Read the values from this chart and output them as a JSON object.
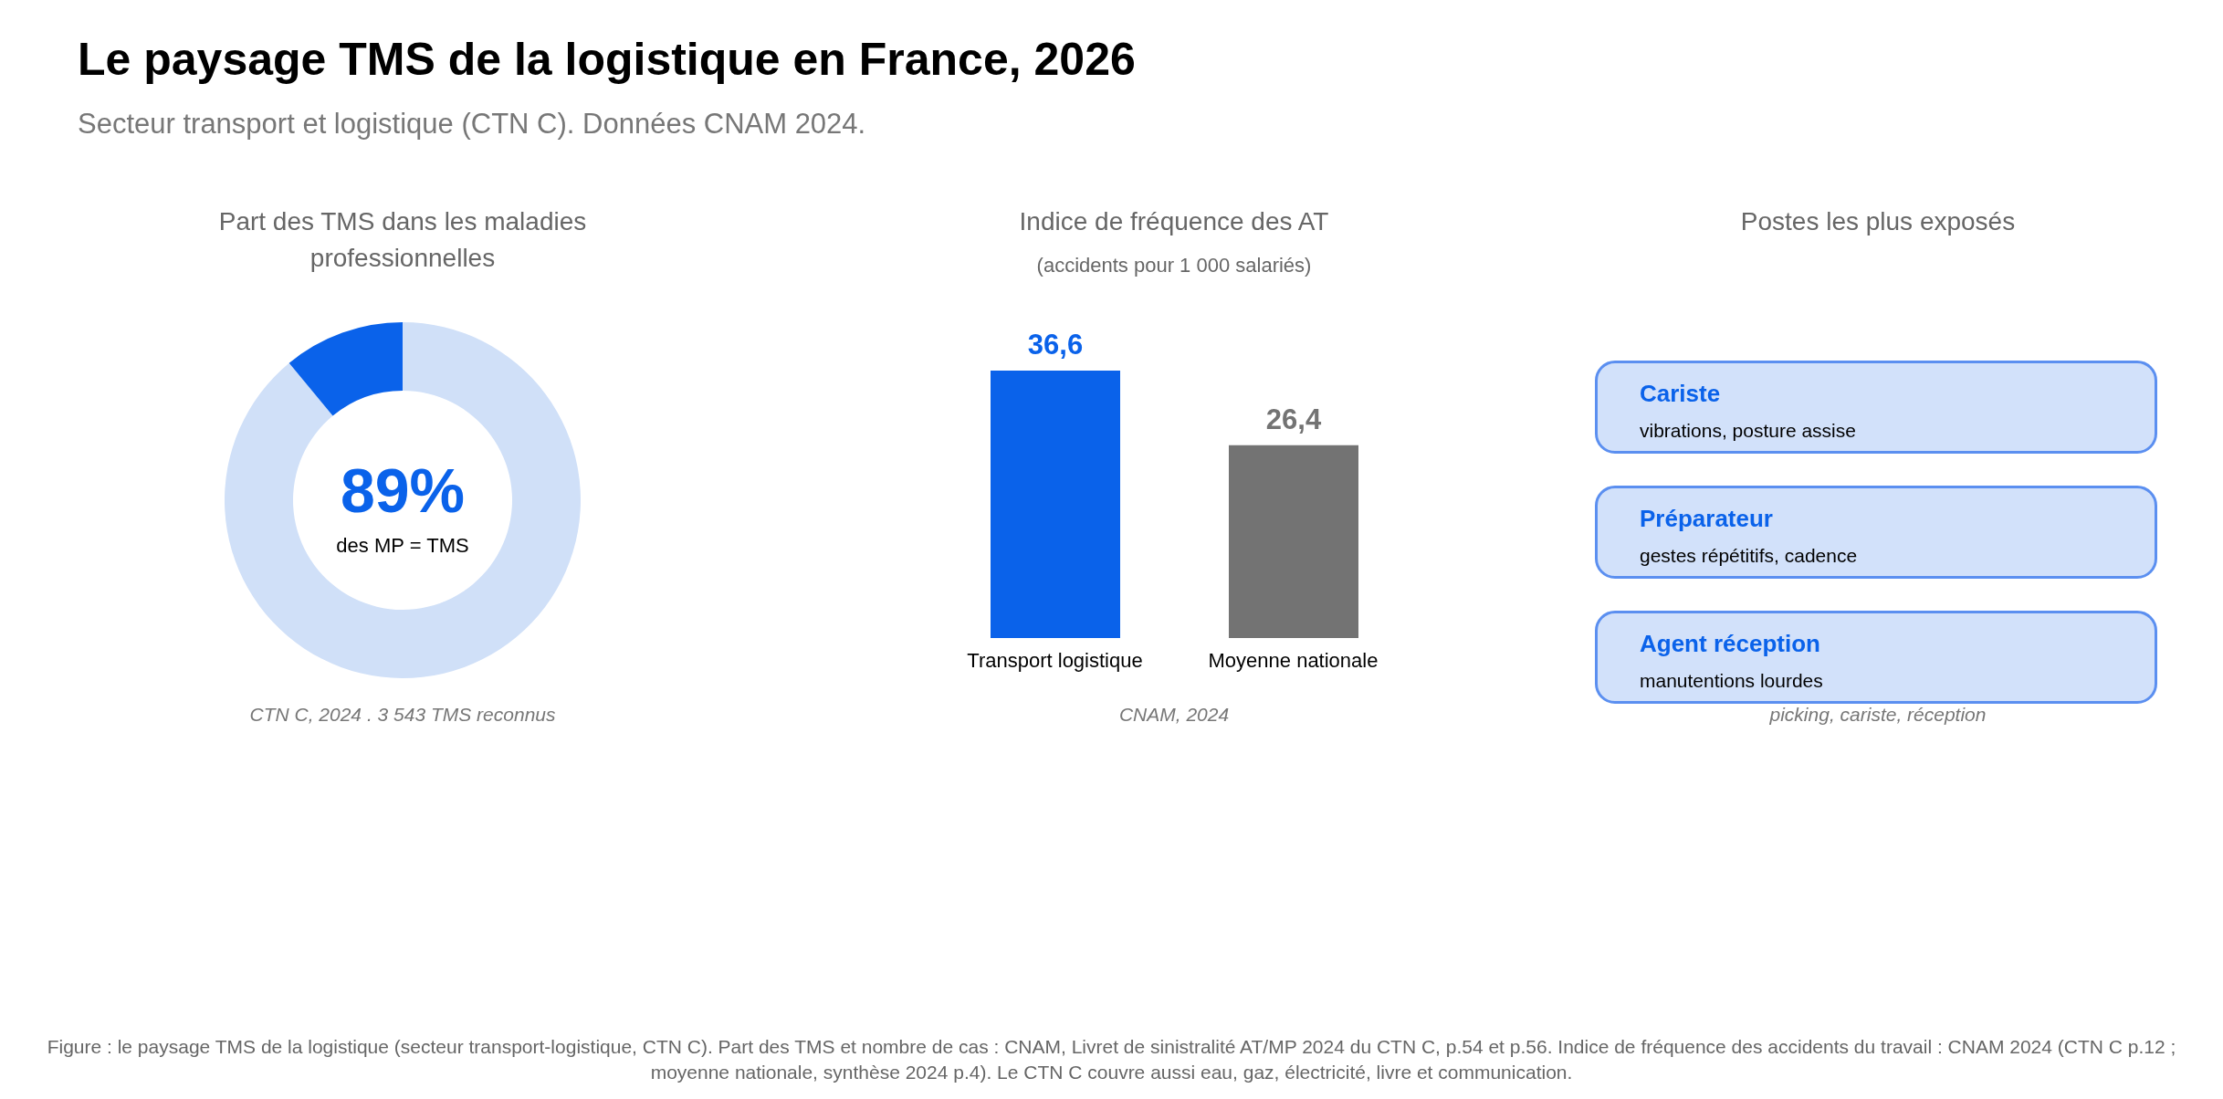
{
  "chart_data": [
    {
      "type": "other",
      "title": "Le paysage TMS de la logistique en France, 2026",
      "subtitle": "Secteur transport et logistique (CTN C). Données CNAM 2024.",
      "annotations": [
        "Figure : le paysage TMS de la logistique (secteur transport-logistique, CTN C). Part des TMS et nombre de cas : CNAM, Livret de sinistralité AT/MP 2024 du CTN C, p.54 et p.56. Indice de fréquence des accidents du travail : CNAM 2024 (CTN C p.12 ; moyenne nationale, synthèse 2024 p.4). Le CTN C couvre aussi eau, gaz, électricité, livre et communication."
      ]
    },
    {
      "type": "donut",
      "title": "Part des TMS dans les maladies professionnelles",
      "categories": [
        null,
        null
      ],
      "values": [
        89,
        11
      ],
      "colors": [
        "#d0e0f8",
        "#0a62ea"
      ],
      "value_labels": [
        "89%",
        null
      ],
      "annotations": [
        "des MP = TMS",
        "CTN C, 2024 . 3 543 TMS reconnus"
      ]
    },
    {
      "type": "bar",
      "title": "Indice de fréquence des AT",
      "subtitle": "(accidents pour 1 000 salariés)",
      "categories": [
        "Transport logistique",
        "Moyenne nationale"
      ],
      "values": [
        36.6,
        26.4
      ],
      "colors": [
        "#0a62ea",
        "#737373"
      ],
      "value_labels": [
        "36,6",
        "26,4"
      ],
      "annotations": [
        "CNAM, 2024"
      ]
    },
    {
      "type": "other",
      "title": "Postes les plus exposés",
      "annotations": [
        "Cariste",
        "vibrations, posture assise",
        "Préparateur",
        "gestes répétitifs, cadence",
        "Agent réception",
        "manutentions lourdes",
        "picking, cariste, réception"
      ]
    }
  ]
}
